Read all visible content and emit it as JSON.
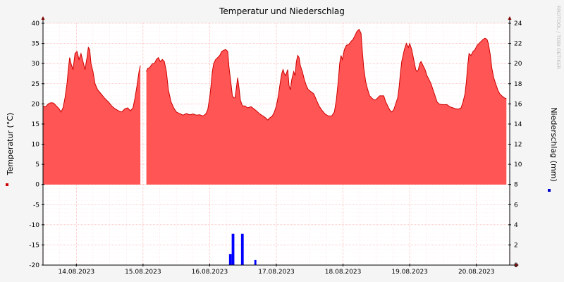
{
  "chart_data": {
    "type": "area",
    "title": "Temperatur und Niederschlag",
    "watermark": "RRDTOOL / TOBI OETIKER",
    "grid": true,
    "colors": {
      "temperature": "#ff5555",
      "temperature_line": "#cc0000",
      "precip": "#0000ff",
      "grid": "#ff9999",
      "axis": "#000000"
    },
    "x_tick_labels": [
      "14.08.2023",
      "15.08.2023",
      "16.08.2023",
      "17.08.2023",
      "18.08.2023",
      "19.08.2023",
      "20.08.2023"
    ],
    "x_tick_positions": [
      0.5,
      1.5,
      2.5,
      3.5,
      4.5,
      5.5,
      6.5
    ],
    "xlim": [
      0,
      7
    ],
    "y_left": {
      "label": "Temperatur (°C)",
      "ylim": [
        -20,
        40
      ],
      "ticks": [
        40,
        35,
        30,
        25,
        20,
        15,
        10,
        5,
        0,
        -5,
        -10,
        -15,
        -20
      ]
    },
    "y_right": {
      "label": "Niederschlag (mm)",
      "ylim": [
        0,
        24
      ],
      "ticks": [
        24,
        22,
        20,
        18,
        16,
        14,
        12,
        10,
        8,
        6,
        4,
        2,
        0
      ]
    },
    "series": [
      {
        "name": "Temperatur",
        "axis": "left",
        "points": [
          [
            0.0,
            19.5
          ],
          [
            0.04,
            19.3
          ],
          [
            0.08,
            20.0
          ],
          [
            0.12,
            20.3
          ],
          [
            0.16,
            20.2
          ],
          [
            0.2,
            19.5
          ],
          [
            0.24,
            18.8
          ],
          [
            0.27,
            18.0
          ],
          [
            0.3,
            19.0
          ],
          [
            0.33,
            21.5
          ],
          [
            0.36,
            25.0
          ],
          [
            0.38,
            28.5
          ],
          [
            0.4,
            31.5
          ],
          [
            0.42,
            30.0
          ],
          [
            0.45,
            28.5
          ],
          [
            0.48,
            32.5
          ],
          [
            0.51,
            33.0
          ],
          [
            0.54,
            31.0
          ],
          [
            0.57,
            32.5
          ],
          [
            0.6,
            30.5
          ],
          [
            0.63,
            28.5
          ],
          [
            0.66,
            31.5
          ],
          [
            0.68,
            34.0
          ],
          [
            0.7,
            33.5
          ],
          [
            0.72,
            30.0
          ],
          [
            0.75,
            28.0
          ],
          [
            0.78,
            25.0
          ],
          [
            0.82,
            23.5
          ],
          [
            0.87,
            22.5
          ],
          [
            0.92,
            21.5
          ],
          [
            0.98,
            20.5
          ],
          [
            1.03,
            19.5
          ],
          [
            1.08,
            18.8
          ],
          [
            1.13,
            18.3
          ],
          [
            1.18,
            18.0
          ],
          [
            1.23,
            18.8
          ],
          [
            1.27,
            19.0
          ],
          [
            1.31,
            18.3
          ],
          [
            1.35,
            19.0
          ],
          [
            1.38,
            21.5
          ],
          [
            1.41,
            24.5
          ],
          [
            1.44,
            28.0
          ],
          [
            1.46,
            29.5
          ],
          [
            1.49,
            null
          ],
          [
            1.53,
            null
          ],
          [
            1.55,
            28.0
          ],
          [
            1.57,
            28.8
          ],
          [
            1.6,
            29.0
          ],
          [
            1.62,
            29.5
          ],
          [
            1.64,
            30.0
          ],
          [
            1.67,
            30.0
          ],
          [
            1.7,
            31.0
          ],
          [
            1.73,
            31.5
          ],
          [
            1.76,
            30.5
          ],
          [
            1.79,
            31.0
          ],
          [
            1.82,
            30.5
          ],
          [
            1.85,
            28.0
          ],
          [
            1.88,
            23.5
          ],
          [
            1.92,
            20.5
          ],
          [
            1.96,
            19.0
          ],
          [
            2.0,
            18.0
          ],
          [
            2.05,
            17.6
          ],
          [
            2.1,
            17.2
          ],
          [
            2.15,
            17.6
          ],
          [
            2.2,
            17.3
          ],
          [
            2.25,
            17.5
          ],
          [
            2.3,
            17.2
          ],
          [
            2.35,
            17.3
          ],
          [
            2.4,
            17.0
          ],
          [
            2.44,
            17.5
          ],
          [
            2.47,
            18.5
          ],
          [
            2.5,
            21.5
          ],
          [
            2.52,
            24.5
          ],
          [
            2.54,
            28.0
          ],
          [
            2.56,
            30.0
          ],
          [
            2.59,
            31.0
          ],
          [
            2.62,
            31.5
          ],
          [
            2.65,
            32.0
          ],
          [
            2.68,
            33.0
          ],
          [
            2.71,
            33.3
          ],
          [
            2.74,
            33.5
          ],
          [
            2.77,
            33.0
          ],
          [
            2.79,
            29.0
          ],
          [
            2.82,
            25.0
          ],
          [
            2.84,
            22.0
          ],
          [
            2.86,
            21.5
          ],
          [
            2.88,
            21.5
          ],
          [
            2.9,
            24.0
          ],
          [
            2.92,
            26.5
          ],
          [
            2.94,
            24.0
          ],
          [
            2.96,
            21.0
          ],
          [
            2.99,
            19.5
          ],
          [
            3.03,
            19.5
          ],
          [
            3.07,
            19.0
          ],
          [
            3.12,
            19.3
          ],
          [
            3.16,
            18.8
          ],
          [
            3.2,
            18.3
          ],
          [
            3.25,
            17.5
          ],
          [
            3.3,
            17.0
          ],
          [
            3.34,
            16.5
          ],
          [
            3.37,
            16.0
          ],
          [
            3.4,
            16.5
          ],
          [
            3.44,
            17.0
          ],
          [
            3.47,
            18.0
          ],
          [
            3.5,
            19.5
          ],
          [
            3.53,
            22.0
          ],
          [
            3.56,
            25.5
          ],
          [
            3.58,
            27.5
          ],
          [
            3.6,
            28.5
          ],
          [
            3.62,
            27.5
          ],
          [
            3.64,
            27.0
          ],
          [
            3.67,
            28.5
          ],
          [
            3.69,
            24.5
          ],
          [
            3.71,
            23.5
          ],
          [
            3.73,
            26.0
          ],
          [
            3.76,
            28.0
          ],
          [
            3.78,
            27.0
          ],
          [
            3.8,
            30.5
          ],
          [
            3.82,
            32.0
          ],
          [
            3.84,
            31.5
          ],
          [
            3.86,
            29.5
          ],
          [
            3.89,
            28.0
          ],
          [
            3.92,
            26.0
          ],
          [
            3.95,
            24.5
          ],
          [
            3.98,
            23.5
          ],
          [
            4.02,
            23.0
          ],
          [
            4.06,
            22.5
          ],
          [
            4.1,
            21.0
          ],
          [
            4.14,
            19.5
          ],
          [
            4.18,
            18.5
          ],
          [
            4.23,
            17.5
          ],
          [
            4.28,
            17.0
          ],
          [
            4.33,
            17.0
          ],
          [
            4.37,
            18.0
          ],
          [
            4.4,
            21.0
          ],
          [
            4.43,
            26.0
          ],
          [
            4.45,
            30.0
          ],
          [
            4.47,
            32.0
          ],
          [
            4.49,
            31.0
          ],
          [
            4.52,
            33.5
          ],
          [
            4.55,
            34.5
          ],
          [
            4.59,
            34.8
          ],
          [
            4.62,
            35.5
          ],
          [
            4.65,
            36.0
          ],
          [
            4.68,
            37.0
          ],
          [
            4.71,
            38.0
          ],
          [
            4.74,
            38.5
          ],
          [
            4.77,
            37.5
          ],
          [
            4.79,
            33.0
          ],
          [
            4.81,
            29.0
          ],
          [
            4.84,
            25.5
          ],
          [
            4.87,
            23.5
          ],
          [
            4.9,
            22.0
          ],
          [
            4.93,
            21.5
          ],
          [
            4.96,
            21.0
          ],
          [
            4.99,
            21.0
          ],
          [
            5.02,
            21.5
          ],
          [
            5.05,
            22.0
          ],
          [
            5.08,
            22.0
          ],
          [
            5.11,
            22.0
          ],
          [
            5.14,
            20.5
          ],
          [
            5.17,
            19.5
          ],
          [
            5.2,
            18.5
          ],
          [
            5.23,
            18.0
          ],
          [
            5.26,
            18.5
          ],
          [
            5.29,
            20.0
          ],
          [
            5.32,
            21.5
          ],
          [
            5.34,
            24.0
          ],
          [
            5.36,
            27.5
          ],
          [
            5.38,
            30.5
          ],
          [
            5.4,
            32.0
          ],
          [
            5.42,
            33.5
          ],
          [
            5.45,
            35.0
          ],
          [
            5.48,
            34.0
          ],
          [
            5.5,
            35.0
          ],
          [
            5.53,
            33.5
          ],
          [
            5.56,
            31.0
          ],
          [
            5.59,
            28.5
          ],
          [
            5.61,
            28.0
          ],
          [
            5.63,
            28.5
          ],
          [
            5.65,
            30.0
          ],
          [
            5.67,
            30.5
          ],
          [
            5.7,
            29.5
          ],
          [
            5.73,
            28.5
          ],
          [
            5.76,
            27.0
          ],
          [
            5.79,
            26.0
          ],
          [
            5.82,
            25.0
          ],
          [
            5.85,
            23.5
          ],
          [
            5.88,
            22.0
          ],
          [
            5.91,
            20.5
          ],
          [
            5.94,
            20.0
          ],
          [
            5.98,
            19.8
          ],
          [
            6.02,
            19.8
          ],
          [
            6.06,
            19.8
          ],
          [
            6.1,
            19.3
          ],
          [
            6.15,
            19.0
          ],
          [
            6.19,
            18.8
          ],
          [
            6.23,
            18.7
          ],
          [
            6.27,
            19.0
          ],
          [
            6.3,
            20.5
          ],
          [
            6.33,
            22.5
          ],
          [
            6.35,
            25.5
          ],
          [
            6.37,
            29.5
          ],
          [
            6.39,
            32.5
          ],
          [
            6.42,
            32.0
          ],
          [
            6.45,
            33.0
          ],
          [
            6.48,
            33.5
          ],
          [
            6.51,
            34.5
          ],
          [
            6.54,
            35.0
          ],
          [
            6.57,
            35.5
          ],
          [
            6.6,
            36.0
          ],
          [
            6.63,
            36.3
          ],
          [
            6.66,
            36.0
          ],
          [
            6.68,
            35.0
          ],
          [
            6.71,
            32.0
          ],
          [
            6.73,
            29.0
          ],
          [
            6.76,
            26.5
          ],
          [
            6.79,
            25.0
          ],
          [
            6.82,
            23.5
          ],
          [
            6.85,
            22.5
          ],
          [
            6.88,
            22.0
          ],
          [
            6.92,
            21.5
          ],
          [
            6.95,
            21.3
          ]
        ]
      },
      {
        "name": "Niederschlag",
        "axis": "right",
        "bars": [
          {
            "x0": 2.79,
            "x1": 2.83,
            "value": 1.1
          },
          {
            "x0": 2.83,
            "x1": 2.87,
            "value": 3.1
          },
          {
            "x0": 2.97,
            "x1": 3.01,
            "value": 3.1
          },
          {
            "x0": 3.17,
            "x1": 3.2,
            "value": 0.5
          }
        ]
      }
    ]
  }
}
